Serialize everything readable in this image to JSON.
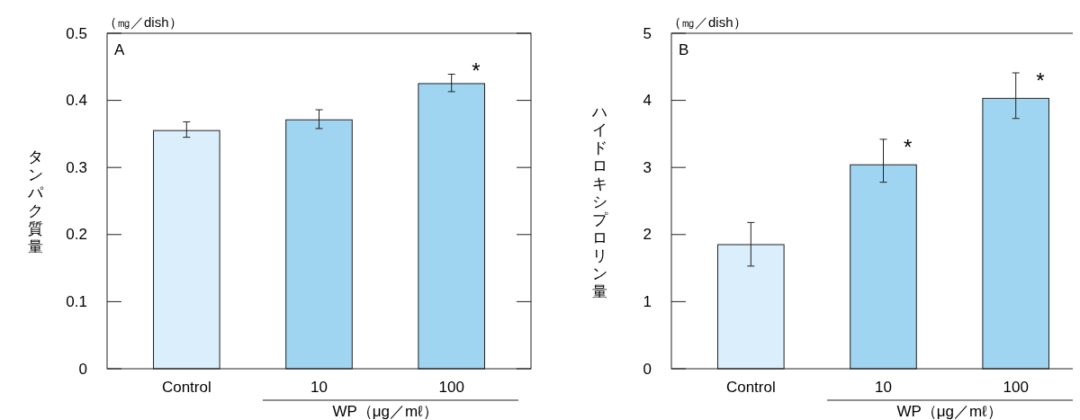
{
  "chart_data": [
    {
      "type": "bar",
      "title": "A",
      "ylabel": "タンパク質量",
      "xlabel": "WP（μg／mℓ）",
      "categories": [
        "Control",
        "10",
        "100"
      ],
      "values": [
        0.355,
        0.371,
        0.425
      ],
      "colors": [
        "#dbeefb",
        "#a0d5f2",
        "#a0d5f2"
      ],
      "errors": [
        [
          0.345,
          0.368
        ],
        [
          0.358,
          0.386
        ],
        [
          0.413,
          0.439
        ]
      ],
      "ylim": [
        0,
        0.5
      ],
      "yticks": [
        0,
        0.1,
        0.2,
        0.3,
        0.4,
        0.5
      ],
      "grid": false,
      "annotations": [
        "（㎎／dish）",
        {
          "text": "*",
          "x": "100",
          "y": 0.444
        }
      ]
    },
    {
      "type": "bar",
      "title": "B",
      "ylabel": "ハイドロキシプロリン量",
      "xlabel": "WP（μg／mℓ）",
      "categories": [
        "Control",
        "10",
        "100"
      ],
      "values": [
        1.85,
        3.04,
        4.03
      ],
      "colors": [
        "#dbeefb",
        "#a0d5f2",
        "#a0d5f2"
      ],
      "errors": [
        [
          1.53,
          2.18
        ],
        [
          2.78,
          3.42
        ],
        [
          3.73,
          4.41
        ]
      ],
      "ylim": [
        0,
        5
      ],
      "yticks": [
        0,
        1,
        2,
        3,
        4,
        5
      ],
      "grid": false,
      "annotations": [
        "（㎎／dish）",
        {
          "text": "*",
          "x": "10",
          "y": 3.31
        },
        {
          "text": "*",
          "x": "100",
          "y": 4.3
        }
      ]
    }
  ]
}
